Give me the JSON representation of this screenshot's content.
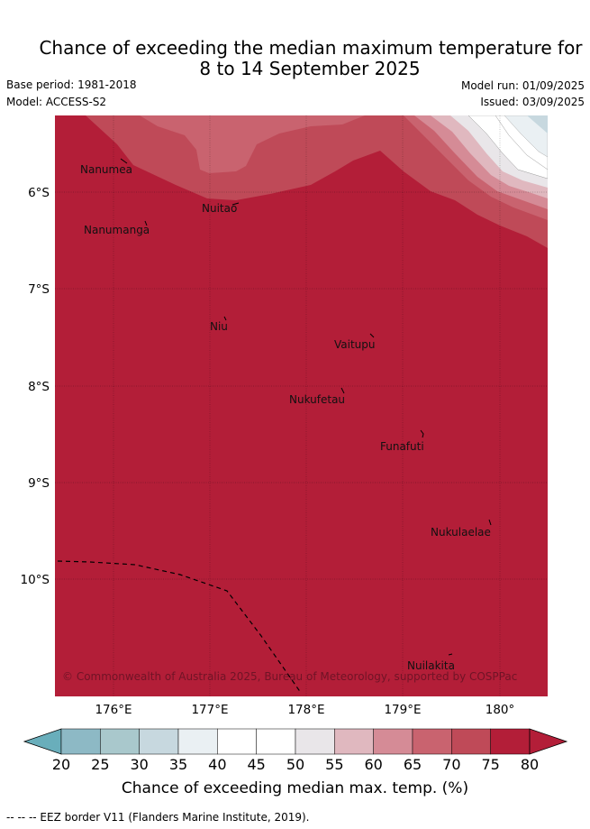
{
  "header": {
    "title_line1": "Chance of exceeding the median maximum temperature for",
    "title_line2": "8 to 14 September 2025",
    "base_period": "Base period: 1981-2018",
    "model": "Model: ACCESS-S2",
    "model_run": "Model run: 01/09/2025",
    "issued": "Issued: 03/09/2025"
  },
  "map": {
    "x_ticks": [
      "176°E",
      "177°E",
      "178°E",
      "179°E",
      "180°"
    ],
    "y_ticks": [
      "6°S",
      "7°S",
      "8°S",
      "9°S",
      "10°S"
    ],
    "places": [
      "Nanumea",
      "Nuitao",
      "Nanumanga",
      "Niu",
      "Vaitupu",
      "Nukufetau",
      "Funafuti",
      "Nukulaelae",
      "Nuilakita"
    ],
    "copyright": "© Commonwealth of Australia 2025, Bureau of Meteorology, supported by COSPPac",
    "dominant_color": "#b31e38"
  },
  "colorbar": {
    "ticks": [
      "20",
      "25",
      "30",
      "35",
      "40",
      "45",
      "50",
      "55",
      "60",
      "65",
      "70",
      "75",
      "80"
    ],
    "colors": [
      "#69aebb",
      "#8db9c5",
      "#a9c8cc",
      "#c7d8df",
      "#eaf0f3",
      "#ffffff",
      "#ffffff",
      "#e9e6e9",
      "#e0b8bf",
      "#d58b96",
      "#c9636f",
      "#bf4a58",
      "#b31e38"
    ],
    "label": "Chance of exceeding median max. temp. (%)"
  },
  "footer": {
    "legend": "--  --  -- EEZ border V11 (Flanders Marine Institute, 2019)."
  }
}
